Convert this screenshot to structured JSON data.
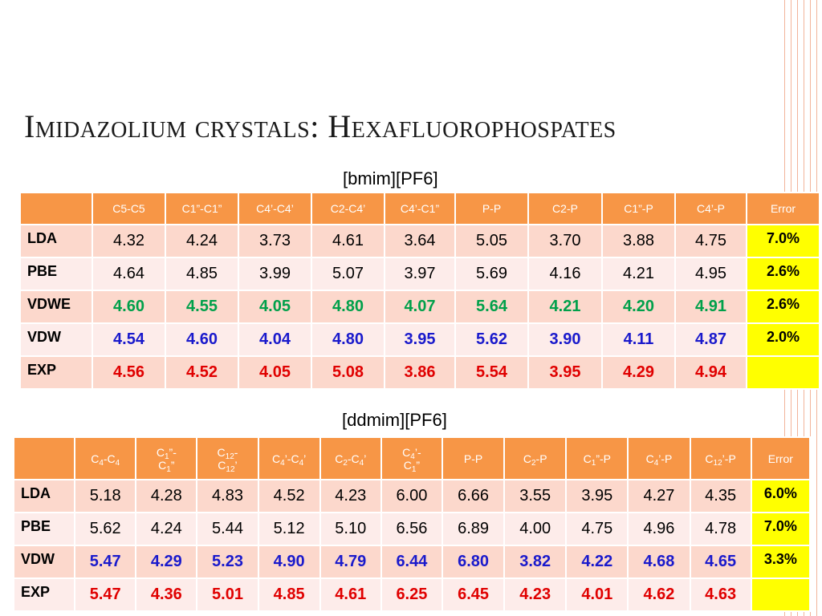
{
  "slide": {
    "title": "Imidazolium crystals: Hexafluorophospates"
  },
  "table1": {
    "caption": "[bmim][PF6]",
    "headers": [
      "C5-C5",
      "C1”-C1”",
      "C4’-C4’",
      "C2-C4’",
      "C4’-C1”",
      "P-P",
      "C2-P",
      "C1”-P",
      "C4’-P",
      "Error"
    ],
    "rows": [
      {
        "label": "LDA",
        "color": "black",
        "values": [
          "4.32",
          "4.24",
          "3.73",
          "4.61",
          "3.64",
          "5.05",
          "3.70",
          "3.88",
          "4.75"
        ],
        "error": "7.0%"
      },
      {
        "label": "PBE",
        "color": "black",
        "values": [
          "4.64",
          "4.85",
          "3.99",
          "5.07",
          "3.97",
          "5.69",
          "4.16",
          "4.21",
          "4.95"
        ],
        "error": "2.6%"
      },
      {
        "label": "VDWE",
        "color": "green",
        "values": [
          "4.60",
          "4.55",
          "4.05",
          "4.80",
          "4.07",
          "5.64",
          "4.21",
          "4.20",
          "4.91"
        ],
        "error": "2.6%"
      },
      {
        "label": "VDW",
        "color": "blue",
        "values": [
          "4.54",
          "4.60",
          "4.04",
          "4.80",
          "3.95",
          "5.62",
          "3.90",
          "4.11",
          "4.87"
        ],
        "error": "2.0%"
      },
      {
        "label": "EXP",
        "color": "red",
        "values": [
          "4.56",
          "4.52",
          "4.05",
          "5.08",
          "3.86",
          "5.54",
          "3.95",
          "4.29",
          "4.94"
        ],
        "error": ""
      }
    ]
  },
  "table2": {
    "caption": "[ddmim][PF6]",
    "headers": [
      "C<sub>4</sub>-C<sub>4</sub>",
      "C<sub>1</sub>”-<br>C<sub>1</sub>”",
      "C<sub>12</sub>-<br>C<sub>12</sub>’",
      "C<sub>4</sub>’-C<sub>4</sub>’",
      "C<sub>2</sub>-C<sub>4</sub>’",
      "C<sub>4</sub>’-<br>C<sub>1</sub>”",
      "P-P",
      "C<sub>2</sub>-P",
      "C<sub>1</sub>”-P",
      "C<sub>4</sub>’-P",
      "C<sub>12</sub>’-P",
      "Error"
    ],
    "rows": [
      {
        "label": "LDA",
        "color": "black",
        "values": [
          "5.18",
          "4.28",
          "4.83",
          "4.52",
          "4.23",
          "6.00",
          "6.66",
          "3.55",
          "3.95",
          "4.27",
          "4.35"
        ],
        "error": "6.0%"
      },
      {
        "label": "PBE",
        "color": "black",
        "values": [
          "5.62",
          "4.24",
          "5.44",
          "5.12",
          "5.10",
          "6.56",
          "6.89",
          "4.00",
          "4.75",
          "4.96",
          "4.78"
        ],
        "error": "7.0%"
      },
      {
        "label": "VDW",
        "color": "blue",
        "values": [
          "5.47",
          "4.29",
          "5.23",
          "4.90",
          "4.79",
          "6.44",
          "6.80",
          "3.82",
          "4.22",
          "4.68",
          "4.65"
        ],
        "error": "3.3%"
      },
      {
        "label": "EXP",
        "color": "red",
        "values": [
          "5.47",
          "4.36",
          "5.01",
          "4.85",
          "4.61",
          "6.25",
          "6.45",
          "4.23",
          "4.01",
          "4.62",
          "4.63"
        ],
        "error": ""
      }
    ]
  },
  "theme": {
    "header_bg": "#f79646",
    "row_odd_bg": "#fcd8cc",
    "row_even_bg": "#fdecea",
    "error_bg": "#ffff00",
    "green": "#00a04a",
    "blue": "#1a1acc",
    "red": "#e00000",
    "stripe": "#f2b49a"
  }
}
